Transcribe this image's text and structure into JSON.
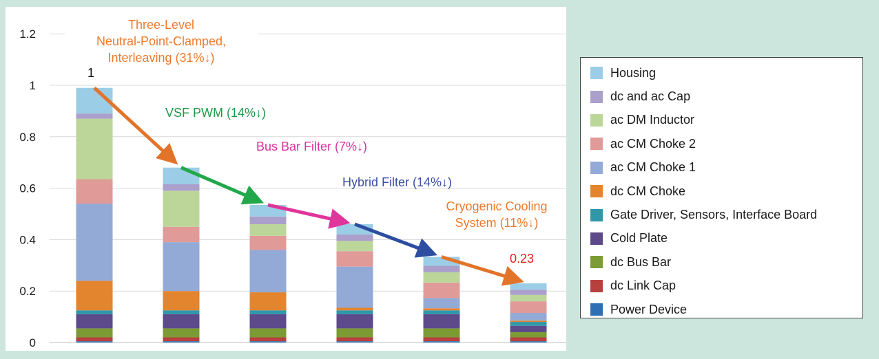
{
  "chart_data": {
    "type": "bar",
    "stacked": true,
    "categories": [
      "",
      "",
      "",
      "",
      "",
      ""
    ],
    "ylim": [
      0,
      1.2
    ],
    "yticks": [
      "0",
      "0.2",
      "0.4",
      "0.6",
      "0.8",
      "1",
      "1.2"
    ],
    "grid": true,
    "legend_position": "right",
    "series": [
      {
        "name": "Power Device",
        "color": "#2f6fb3",
        "values": [
          0.005,
          0.005,
          0.005,
          0.005,
          0.005,
          0.005
        ]
      },
      {
        "name": "dc Link Cap",
        "color": "#b8413f",
        "values": [
          0.015,
          0.015,
          0.015,
          0.015,
          0.015,
          0.015
        ]
      },
      {
        "name": "dc Bus Bar",
        "color": "#7b9b34",
        "values": [
          0.035,
          0.035,
          0.035,
          0.035,
          0.035,
          0.02
        ]
      },
      {
        "name": "Cold Plate",
        "color": "#5d4a8a",
        "values": [
          0.055,
          0.055,
          0.055,
          0.055,
          0.055,
          0.025
        ]
      },
      {
        "name": "Gate Driver, Sensors, Interface Board",
        "color": "#2f97a8",
        "values": [
          0.015,
          0.015,
          0.015,
          0.015,
          0.015,
          0.015
        ]
      },
      {
        "name": "dc CM Choke",
        "color": "#e3842e",
        "values": [
          0.115,
          0.075,
          0.07,
          0.01,
          0.008,
          0.005
        ]
      },
      {
        "name": "ac CM Choke 1",
        "color": "#93a9d6",
        "values": [
          0.3,
          0.19,
          0.165,
          0.16,
          0.04,
          0.03
        ]
      },
      {
        "name": "ac CM Choke 2",
        "color": "#e09a98",
        "values": [
          0.095,
          0.06,
          0.055,
          0.06,
          0.06,
          0.045
        ]
      },
      {
        "name": "ac DM Inductor",
        "color": "#bcd69a",
        "values": [
          0.235,
          0.14,
          0.045,
          0.04,
          0.04,
          0.025
        ]
      },
      {
        "name": "dc and ac Cap",
        "color": "#ab9fcc",
        "values": [
          0.02,
          0.025,
          0.03,
          0.025,
          0.025,
          0.02
        ]
      },
      {
        "name": "Housing",
        "color": "#9ccde6",
        "values": [
          0.1,
          0.065,
          0.045,
          0.04,
          0.035,
          0.025
        ]
      }
    ],
    "legend_order": [
      "Housing",
      "dc and ac Cap",
      "ac DM Inductor",
      "ac CM Choke 2",
      "ac CM Choke 1",
      "dc CM Choke",
      "Gate Driver, Sensors, Interface Board",
      "Cold Plate",
      "dc Bus Bar",
      "dc Link Cap",
      "Power Device"
    ],
    "trend_arrows": [
      {
        "from": 0,
        "to": 1,
        "color": "#e2742a"
      },
      {
        "from": 1,
        "to": 2,
        "color": "#22a84a"
      },
      {
        "from": 2,
        "to": 3,
        "color": "#e0359a"
      },
      {
        "from": 3,
        "to": 4,
        "color": "#2d4ea0"
      },
      {
        "from": 4,
        "to": 5,
        "color": "#e2742a"
      }
    ],
    "annotations": {
      "step1": {
        "lines": [
          "Three-Level",
          "Neutral-Point-Clamped,",
          "Interleaving (31%↓)"
        ],
        "color": "#ec7a2c"
      },
      "step2": {
        "lines": [
          "VSF PWM (14%↓)"
        ],
        "color": "#1e9b48"
      },
      "step3": {
        "lines": [
          "Bus Bar Filter (7%↓)"
        ],
        "color": "#d8329a"
      },
      "step4": {
        "lines": [
          "Hybrid Filter (14%↓)"
        ],
        "color": "#3a4fa4"
      },
      "step5": {
        "lines": [
          "Cryogenic Cooling",
          "System (11%↓)"
        ],
        "color": "#ec7a2c"
      },
      "start_value": {
        "text": "1",
        "color": "#111111"
      },
      "end_value": {
        "text": "0.23",
        "color": "#e02020"
      }
    }
  }
}
